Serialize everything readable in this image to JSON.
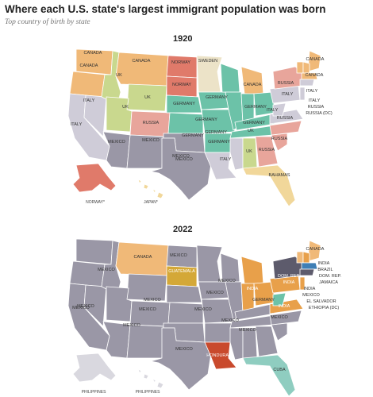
{
  "title": "Where each U.S. state's largest immigrant population was born",
  "subtitle": "Top country of birth by state",
  "maps": [
    {
      "year": "1920",
      "insets": [
        "NORWAY*",
        "JAPAN*"
      ],
      "labels": [
        "CANADA",
        "CANADA",
        "CANADA",
        "NORWAY",
        "SWEDEN",
        "CANADA",
        "NORWAY",
        "UK",
        "UK",
        "MEXICO",
        "RUSSIA",
        "CANADA",
        "ITALY",
        "ITALY",
        "GERMANY",
        "GERMANY",
        "GERMANY",
        "GERMANY",
        "ITALY",
        "ITALY",
        "UK",
        "RUSSIA",
        "GERMANY",
        "ITALY",
        "RUSSIA",
        "RUSSIA",
        "RUSSIA (DC)",
        "ITALY",
        "GERMANY",
        "GERMANY",
        "MEXICO",
        "MEXICO",
        "GERMANY",
        "UK",
        "RUSSIA",
        "UK",
        "RUSSIA",
        "MEXICO",
        "ITALY",
        "BAHAMAS",
        "CANADA"
      ]
    },
    {
      "year": "2022",
      "insets": [
        "PHILIPPINES",
        "PHILIPPINES"
      ],
      "labels": [
        "CANADA",
        "MEXICO",
        "CANADA",
        "MEXICO",
        "GUATEMALA",
        "INDIA",
        "BRAZIL",
        "DOM. REP.",
        "DOM. REP.",
        "JAMAICA",
        "MEXICO",
        "MEXICO",
        "MEXICO",
        "MEXICO",
        "INDIA",
        "MEXICO",
        "INDIA",
        "MEXICO",
        "GERMANY",
        "EL SALVADOR",
        "INDIA",
        "ETHIOPIA (DC)",
        "MEXICO",
        "MEXICO",
        "MEXICO",
        "MEXICO",
        "HONDURAS",
        "CUBA",
        "MEXICO",
        "MEXICO",
        "INDIA",
        "MEXICO"
      ]
    }
  ],
  "colors": {
    "canada": "#f0b978",
    "uk": "#c9d88e",
    "germany": "#6cc2a8",
    "italy": "#cfccd8",
    "russia": "#e8a59b",
    "norway": "#e07a6a",
    "sweden": "#ece3c8",
    "mexico": "#9a97a6",
    "bahamas": "#f1d79a",
    "india": "#e8a04a",
    "guatemala": "#d4a837",
    "honduras": "#c94a2d",
    "cuba": "#8fcdc0",
    "dom_rep": "#5d5b6c",
    "philippines": "#d9d8df"
  }
}
